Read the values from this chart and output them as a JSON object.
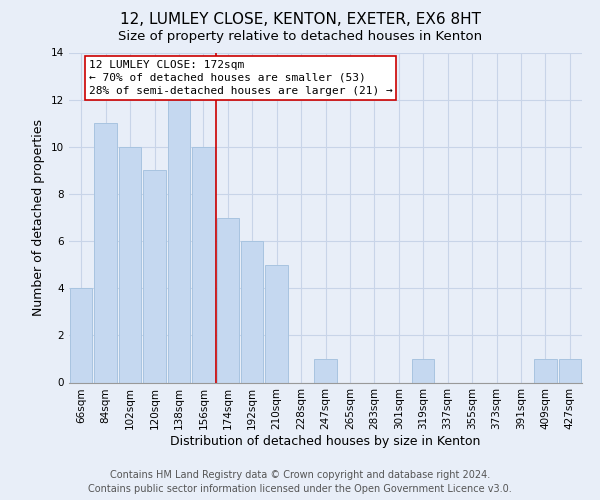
{
  "title": "12, LUMLEY CLOSE, KENTON, EXETER, EX6 8HT",
  "subtitle": "Size of property relative to detached houses in Kenton",
  "xlabel": "Distribution of detached houses by size in Kenton",
  "ylabel": "Number of detached properties",
  "bar_labels": [
    "66sqm",
    "84sqm",
    "102sqm",
    "120sqm",
    "138sqm",
    "156sqm",
    "174sqm",
    "192sqm",
    "210sqm",
    "228sqm",
    "247sqm",
    "265sqm",
    "283sqm",
    "301sqm",
    "319sqm",
    "337sqm",
    "355sqm",
    "373sqm",
    "391sqm",
    "409sqm",
    "427sqm"
  ],
  "bar_values": [
    4,
    11,
    10,
    9,
    12,
    10,
    7,
    6,
    5,
    0,
    1,
    0,
    0,
    0,
    1,
    0,
    0,
    0,
    0,
    1,
    1
  ],
  "bar_color": "#c5d8f0",
  "bar_edge_color": "#a8c4e0",
  "ylim": [
    0,
    14
  ],
  "yticks": [
    0,
    2,
    4,
    6,
    8,
    10,
    12,
    14
  ],
  "vline_index": 6,
  "vline_color": "#cc0000",
  "annotation_title": "12 LUMLEY CLOSE: 172sqm",
  "annotation_line1": "← 70% of detached houses are smaller (53)",
  "annotation_line2": "28% of semi-detached houses are larger (21) →",
  "annotation_box_color": "#ffffff",
  "annotation_box_edge": "#cc0000",
  "footer_line1": "Contains HM Land Registry data © Crown copyright and database right 2024.",
  "footer_line2": "Contains public sector information licensed under the Open Government Licence v3.0.",
  "background_color": "#e8eef8",
  "plot_bg_color": "#e8eef8",
  "grid_color": "#c8d4e8",
  "title_fontsize": 11,
  "subtitle_fontsize": 9.5,
  "axis_label_fontsize": 9,
  "tick_fontsize": 7.5,
  "annotation_fontsize": 8,
  "footer_fontsize": 7
}
